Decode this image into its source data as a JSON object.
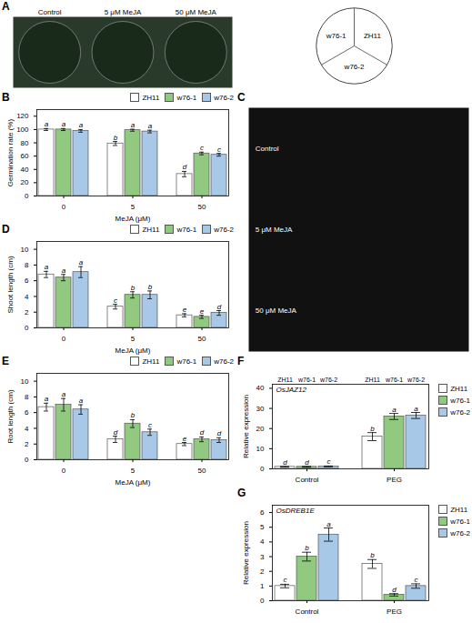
{
  "chart_data": [
    {
      "type": "image",
      "title": "A",
      "annotations": [
        "Control",
        "5 μM MeJA",
        "50 μM MeJA"
      ],
      "color": "#2a3a2a"
    },
    {
      "type": "diagram",
      "annotations": [
        "ZH11",
        "w76-1",
        "w76-2"
      ]
    },
    {
      "type": "bar",
      "title": "B",
      "x_label": "MeJA (μM)",
      "y_label": "Germination rate (%)",
      "categories": [
        "0",
        "5",
        "50"
      ],
      "series": [
        {
          "name": "ZH11",
          "color": "#ffffff",
          "values": [
            100,
            79,
            33
          ],
          "errors": [
            1.5,
            3.0,
            4.0
          ],
          "letters": [
            "a",
            "b",
            "d"
          ]
        },
        {
          "name": "w76-1",
          "color": "#90c97f",
          "values": [
            100,
            99,
            64
          ],
          "errors": [
            1.5,
            1.5,
            2.0
          ],
          "letters": [
            "a",
            "a",
            "c"
          ]
        },
        {
          "name": "w76-2",
          "color": "#a8c8e8",
          "values": [
            98,
            97,
            62
          ],
          "errors": [
            2.0,
            2.0,
            2.0
          ],
          "letters": [
            "a",
            "a",
            "c"
          ]
        }
      ],
      "ylim": [
        0,
        130
      ],
      "yticks": [
        0,
        20,
        40,
        60,
        80,
        100,
        120
      ],
      "legend": "upper right"
    },
    {
      "type": "image",
      "title": "C",
      "annotations": [
        "Control",
        "5 μM MeJA",
        "50 μM MeJA"
      ],
      "color": "#111111"
    },
    {
      "type": "bar",
      "title": "D",
      "x_label": "MeJA (μM)",
      "y_label": "Shoot length (cm)",
      "categories": [
        "0",
        "5",
        "50"
      ],
      "series": [
        {
          "name": "ZH11",
          "color": "#ffffff",
          "values": [
            6.8,
            2.7,
            1.6
          ],
          "errors": [
            0.4,
            0.3,
            0.2
          ],
          "letters": [
            "a",
            "c",
            "e"
          ]
        },
        {
          "name": "w76-1",
          "color": "#90c97f",
          "values": [
            6.4,
            4.2,
            1.4
          ],
          "errors": [
            0.4,
            0.4,
            0.2
          ],
          "letters": [
            "a",
            "b",
            "e"
          ]
        },
        {
          "name": "w76-2",
          "color": "#a8c8e8",
          "values": [
            7.1,
            4.2,
            1.9
          ],
          "errors": [
            0.7,
            0.5,
            0.3
          ],
          "letters": [
            "a",
            "b",
            "d"
          ]
        }
      ],
      "ylim": [
        0,
        11
      ],
      "yticks": [
        0,
        2,
        4,
        6,
        8,
        10
      ],
      "legend": "upper right"
    },
    {
      "type": "bar",
      "title": "E",
      "x_label": "MeJA (μM)",
      "y_label": "Root length (cm)",
      "categories": [
        "0",
        "5",
        "50"
      ],
      "series": [
        {
          "name": "ZH11",
          "color": "#ffffff",
          "values": [
            6.7,
            2.6,
            2.0
          ],
          "errors": [
            0.5,
            0.4,
            0.2
          ],
          "letters": [
            "a",
            "d",
            "e"
          ]
        },
        {
          "name": "w76-1",
          "color": "#90c97f",
          "values": [
            7.0,
            4.6,
            2.6
          ],
          "errors": [
            0.8,
            0.5,
            0.3
          ],
          "letters": [
            "a",
            "b",
            "d"
          ]
        },
        {
          "name": "w76-2",
          "color": "#a8c8e8",
          "values": [
            6.4,
            3.5,
            2.5
          ],
          "errors": [
            0.6,
            0.4,
            0.3
          ],
          "letters": [
            "a",
            "c",
            "d"
          ]
        }
      ],
      "ylim": [
        0,
        11
      ],
      "yticks": [
        0,
        2,
        4,
        6,
        8,
        10
      ],
      "legend": "upper right"
    },
    {
      "type": "bar",
      "title": "F",
      "subtitle": "OsJAZ12",
      "y_label": "Relative expression",
      "annotations": [
        "ZH11",
        "w76-1",
        "w76-2"
      ],
      "categories": [
        "Control",
        "PEG"
      ],
      "series": [
        {
          "name": "ZH11",
          "color": "#ffffff",
          "values": [
            1.0,
            16.0
          ],
          "errors": [
            0.2,
            2.0
          ],
          "letters": [
            "d",
            "b"
          ]
        },
        {
          "name": "w76-1",
          "color": "#90c97f",
          "values": [
            1.0,
            26.0
          ],
          "errors": [
            0.2,
            1.5
          ],
          "letters": [
            "d",
            "a"
          ]
        },
        {
          "name": "w76-2",
          "color": "#a8c8e8",
          "values": [
            1.2,
            26.5
          ],
          "errors": [
            0.2,
            1.5
          ],
          "letters": [
            "c",
            "a"
          ]
        }
      ],
      "ylim": [
        0,
        42
      ],
      "yticks": [
        0,
        10,
        20,
        30,
        40
      ],
      "legend": "right"
    },
    {
      "type": "bar",
      "title": "G",
      "subtitle": "OsDREB1E",
      "y_label": "Relative expression",
      "categories": [
        "Control",
        "PEG"
      ],
      "series": [
        {
          "name": "ZH11",
          "color": "#ffffff",
          "values": [
            1.0,
            2.5
          ],
          "errors": [
            0.12,
            0.3
          ],
          "letters": [
            "c",
            "b"
          ]
        },
        {
          "name": "w76-1",
          "color": "#90c97f",
          "values": [
            3.0,
            0.4
          ],
          "errors": [
            0.3,
            0.08
          ],
          "letters": [
            "b",
            "d"
          ]
        },
        {
          "name": "w76-2",
          "color": "#a8c8e8",
          "values": [
            4.5,
            1.0
          ],
          "errors": [
            0.45,
            0.15
          ],
          "letters": [
            "a",
            "c"
          ]
        }
      ],
      "ylim": [
        0,
        6.5
      ],
      "yticks": [
        0,
        1,
        2,
        3,
        4,
        5,
        6
      ],
      "legend": "right"
    }
  ]
}
